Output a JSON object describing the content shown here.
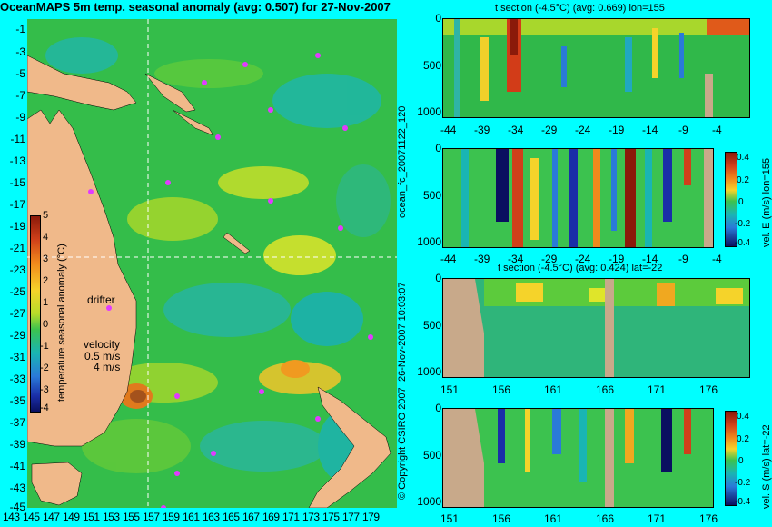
{
  "title": "OceanMAPS 5m temp. seasonal anomaly (avg: 0.507) for 27-Nov-2007",
  "map": {
    "lat_ticks": [
      "-1",
      "-3",
      "-5",
      "-7",
      "-9",
      "-11",
      "-13",
      "-15",
      "-17",
      "-19",
      "-21",
      "-23",
      "-25",
      "-27",
      "-29",
      "-31",
      "-33",
      "-35",
      "-37",
      "-39",
      "-41",
      "-43",
      "-45"
    ],
    "lon_ticks": [
      "143",
      "145",
      "147",
      "149",
      "151",
      "153",
      "155",
      "157",
      "159",
      "161",
      "163",
      "165",
      "167",
      "169",
      "171",
      "173",
      "175",
      "177",
      "179"
    ],
    "colorbar_label": "temperature seasonal anomaly (°C)",
    "colorbar_ticks": [
      "5",
      "4",
      "3",
      "2",
      "1",
      "0",
      "-1",
      "-2",
      "-3",
      "-4"
    ],
    "drifter_label": "drifter",
    "velocity_label": "velocity",
    "velocity_value": "0.5 m/s",
    "velocity_value2": "4 m/s"
  },
  "side_labels": {
    "left_top": "ocean_fc_20071122_120",
    "left_bottom_date": "26-Nov-2007 10:03:07",
    "left_bottom_copy": "© Copyright CSIRO 2007"
  },
  "sections": [
    {
      "title": "t section (-4.5°C) (avg: 0.669) lon=155",
      "y_ticks": [
        "0",
        "500",
        "1000"
      ],
      "x_ticks": [
        "-44",
        "-39",
        "-34",
        "-29",
        "-24",
        "-19",
        "-14",
        "-9",
        "-4"
      ],
      "colorbar": false
    },
    {
      "title": "",
      "y_ticks": [
        "0",
        "500",
        "1000"
      ],
      "x_ticks": [
        "-44",
        "-39",
        "-34",
        "-29",
        "-24",
        "-19",
        "-14",
        "-9",
        "-4"
      ],
      "colorbar": true,
      "colorbar_label": "vel. E (m/s) lon=155",
      "colorbar_ticks": [
        "0.4",
        "0.2",
        "0",
        "-0.2",
        "-0.4"
      ]
    },
    {
      "title": "t section (-4.5°C) (avg: 0.424) lat=-22",
      "y_ticks": [
        "0",
        "500",
        "1000"
      ],
      "x_ticks": [
        "151",
        "156",
        "161",
        "166",
        "171",
        "176"
      ],
      "colorbar": false
    },
    {
      "title": "",
      "y_ticks": [
        "0",
        "500",
        "1000"
      ],
      "x_ticks": [
        "151",
        "156",
        "161",
        "166",
        "171",
        "176"
      ],
      "colorbar": true,
      "colorbar_label": "vel. S (m/s) lat=-22",
      "colorbar_ticks": [
        "0.4",
        "0.2",
        "0",
        "-0.2",
        "-0.4"
      ]
    }
  ],
  "chart_data": [
    {
      "type": "heatmap",
      "title": "OceanMAPS 5m temp. seasonal anomaly (avg: 0.507) for 27-Nov-2007",
      "xlabel": "",
      "ylabel": "",
      "xlim": [
        143,
        180
      ],
      "ylim": [
        -45,
        0
      ],
      "colorbar_range": [
        -4,
        5
      ],
      "colorbar_label": "temperature seasonal anomaly (°C)",
      "crosshair": {
        "lon": 155,
        "lat": -22
      }
    },
    {
      "type": "heatmap",
      "title": "t section (-4.5°C) (avg: 0.669) lon=155",
      "x_range": [
        -45,
        0
      ],
      "y_range_depth": [
        0,
        1000
      ]
    },
    {
      "type": "heatmap",
      "title": "",
      "x_range": [
        -45,
        0
      ],
      "y_range_depth": [
        0,
        1000
      ],
      "colorbar_range": [
        -0.4,
        0.4
      ],
      "colorbar_label": "vel. E (m/s) lon=155"
    },
    {
      "type": "heatmap",
      "title": "t section (-4.5°C) (avg: 0.424) lat=-22",
      "x_range": [
        150,
        180
      ],
      "y_range_depth": [
        0,
        1000
      ]
    },
    {
      "type": "heatmap",
      "title": "",
      "x_range": [
        150,
        180
      ],
      "y_range_depth": [
        0,
        1000
      ],
      "colorbar_range": [
        -0.4,
        0.4
      ],
      "colorbar_label": "vel. S (m/s) lat=-22"
    }
  ]
}
